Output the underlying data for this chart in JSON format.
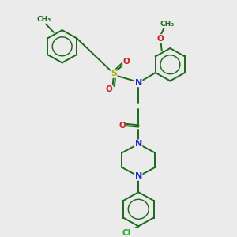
{
  "bg_color": "#ebebeb",
  "atom_colors": {
    "C": "#1a6b1a",
    "N": "#2222cc",
    "O": "#cc2222",
    "S": "#aaaa00",
    "Cl": "#22aa22"
  },
  "bond_color": "#1a6b1a",
  "figsize": [
    3.0,
    3.0
  ],
  "dpi": 100,
  "lw": 1.4
}
